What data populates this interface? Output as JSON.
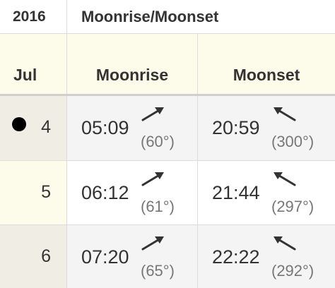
{
  "header": {
    "year": "2016",
    "title": "Moonrise/Moonset"
  },
  "columns": {
    "month": "Jul",
    "moonrise": "Moonrise",
    "moonset": "Moonset"
  },
  "rows": [
    {
      "day": "4",
      "phase_icon": "new-moon-icon",
      "moonrise": {
        "time": "05:09",
        "angle": "(60°)",
        "direction_icon": "arrow-up-right-icon"
      },
      "moonset": {
        "time": "20:59",
        "angle": "(300°)",
        "direction_icon": "arrow-up-left-icon"
      }
    },
    {
      "day": "5",
      "moonrise": {
        "time": "06:12",
        "angle": "(61°)",
        "direction_icon": "arrow-up-right-icon"
      },
      "moonset": {
        "time": "21:44",
        "angle": "(297°)",
        "direction_icon": "arrow-up-left-icon"
      }
    },
    {
      "day": "6",
      "moonrise": {
        "time": "07:20",
        "angle": "(65°)",
        "direction_icon": "arrow-up-right-icon"
      },
      "moonset": {
        "time": "22:22",
        "angle": "(292°)",
        "direction_icon": "arrow-up-left-icon"
      }
    }
  ],
  "colors": {
    "header_bg": "#fdfbe9",
    "alt_row_bg": "#f4f4f4",
    "text": "#333333",
    "angle_text": "#777777"
  }
}
